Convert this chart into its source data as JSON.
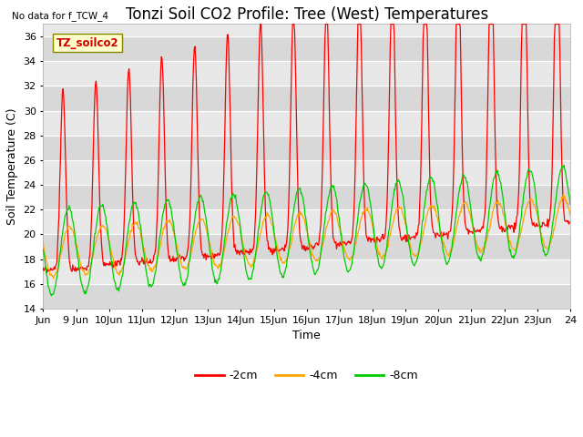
{
  "title": "Tonzi Soil CO2 Profile: Tree (West) Temperatures",
  "subtitle": "No data for f_TCW_4",
  "ylabel": "Soil Temperature (C)",
  "xlabel": "Time",
  "watermark": "TZ_soilco2",
  "ylim": [
    14,
    37
  ],
  "yticks": [
    14,
    16,
    18,
    20,
    22,
    24,
    26,
    28,
    30,
    32,
    34,
    36
  ],
  "xtick_labels": [
    "Jun",
    "9 Jun",
    "10Jun",
    "11Jun",
    "12Jun",
    "13Jun",
    "14Jun",
    "15Jun",
    "16Jun",
    "17Jun",
    "18Jun",
    "19Jun",
    "20Jun",
    "21Jun",
    "22Jun",
    "23Jun",
    "24"
  ],
  "legend_labels": [
    "-2cm",
    "-4cm",
    "-8cm"
  ],
  "line_colors": [
    "#ff0000",
    "#ffa500",
    "#00cc00"
  ],
  "plot_bg_color": "#e8e8e8",
  "band_color_light": "#e0e0e0",
  "band_color_dark": "#d0d0d0",
  "grid_color": "#ffffff",
  "title_fontsize": 12,
  "axis_fontsize": 9,
  "tick_fontsize": 8
}
